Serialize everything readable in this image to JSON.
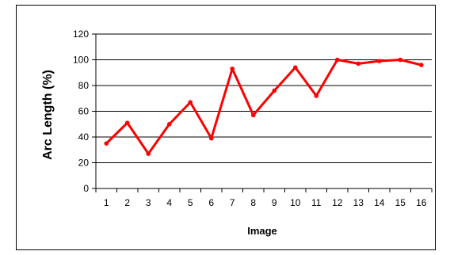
{
  "chart_data": {
    "type": "line",
    "title": "",
    "xlabel": "Image",
    "ylabel": "Arc Length (%)",
    "categories": [
      "1",
      "2",
      "3",
      "4",
      "5",
      "6",
      "7",
      "8",
      "9",
      "10",
      "11",
      "12",
      "13",
      "14",
      "15",
      "16"
    ],
    "series": [
      {
        "values": [
          35,
          51,
          27,
          50,
          67,
          39,
          93,
          57,
          76,
          94,
          72,
          100,
          97,
          99,
          100,
          96
        ]
      }
    ],
    "ylim": [
      0,
      120
    ],
    "yticks": [
      0,
      20,
      40,
      60,
      80,
      100,
      120
    ],
    "grid": "horizontal",
    "legend": "none",
    "line_color": "#ff0000",
    "gridline_color": "#000000"
  }
}
